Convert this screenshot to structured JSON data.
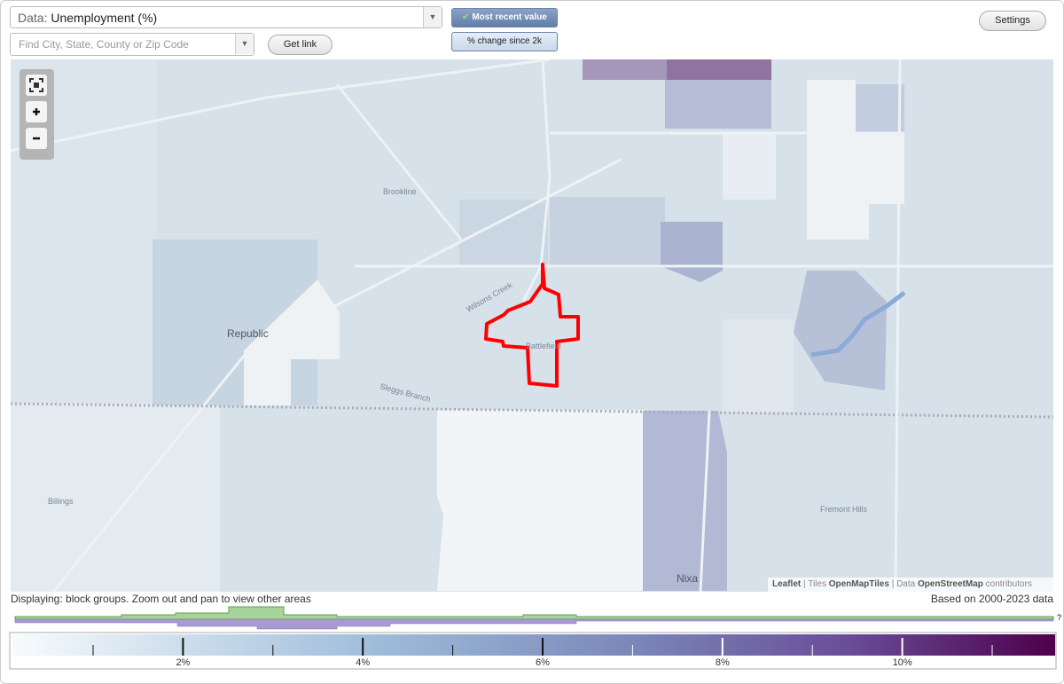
{
  "controls": {
    "data_label": "Data:",
    "data_value": "Unemployment (%)",
    "search_placeholder": "Find City, State, County or Zip Code",
    "get_link": "Get link",
    "most_recent": "Most recent value",
    "percent_change": "% change since 2k",
    "settings": "Settings"
  },
  "map": {
    "labels": [
      "Brookline",
      "Republic",
      "Wilsons Creek",
      "Battlefield",
      "Sleggs Branch",
      "Billings",
      "Fremont Hills",
      "Nixa"
    ],
    "attribution": {
      "leaflet": "Leaflet",
      "tiles": "| Tiles",
      "tiles_source": "OpenMapTiles",
      "data": "| Data",
      "data_source": "OpenStreetMap",
      "contributors": "contributors"
    }
  },
  "status": {
    "displaying": "Displaying: block groups. Zoom out and pan to view other areas",
    "based_on": "Based on 2000-2023 data"
  },
  "legend": {
    "labels": [
      "2%",
      "4%",
      "6%",
      "8%",
      "10%"
    ],
    "help": "?"
  }
}
